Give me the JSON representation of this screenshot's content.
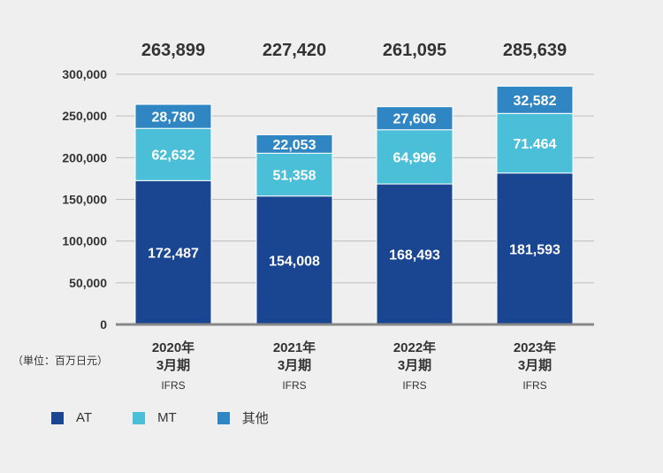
{
  "unit_label": "（単位：百万日元）",
  "colors": {
    "AT": "#1a4590",
    "MT": "#4abfd7",
    "other": "#2f86c2",
    "grid": "#bdbdbd",
    "axis": "#888888",
    "text": "#333333"
  },
  "chart_data": {
    "type": "bar",
    "stacked": true,
    "categories": [
      {
        "year": "2020年",
        "period": "3月期",
        "standard": "IFRS"
      },
      {
        "year": "2021年",
        "period": "3月期",
        "standard": "IFRS"
      },
      {
        "year": "2022年",
        "period": "3月期",
        "standard": "IFRS"
      },
      {
        "year": "2023年",
        "period": "3月期",
        "standard": "IFRS"
      }
    ],
    "series": [
      {
        "name": "AT",
        "values": [
          172487,
          154008,
          168493,
          181593
        ],
        "labels": [
          "172,487",
          "154,008",
          "168,493",
          "181,593"
        ]
      },
      {
        "name": "MT",
        "values": [
          62632,
          51358,
          64996,
          71464
        ],
        "labels": [
          "62,632",
          "51,358",
          "64,996",
          "71.464"
        ]
      },
      {
        "name": "其他",
        "values": [
          28780,
          22053,
          27606,
          32582
        ],
        "labels": [
          "28,780",
          "22,053",
          "27,606",
          "32,582"
        ]
      }
    ],
    "totals": [
      "263,899",
      "227,420",
      "261,095",
      "285,639"
    ],
    "total_values": [
      263899,
      227420,
      261095,
      285639
    ],
    "ylim": [
      0,
      300000
    ],
    "yticks": [
      0,
      50000,
      100000,
      150000,
      200000,
      250000,
      300000
    ],
    "ytick_labels": [
      "0",
      "50,000",
      "100,000",
      "150,000",
      "200,000",
      "250,000",
      "300,000"
    ],
    "grid": true,
    "legend_position": "bottom-left"
  }
}
